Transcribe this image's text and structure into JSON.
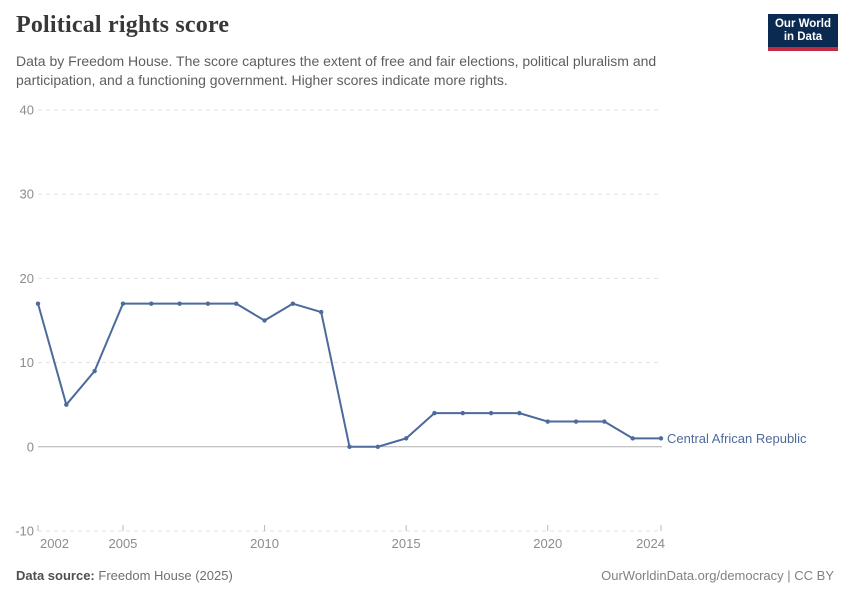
{
  "header": {
    "title": "Political rights score",
    "subtitle_lines": [
      "Data by Freedom House. The score captures the extent of free and fair elections, political pluralism and",
      "participation, and a functioning government. Higher scores indicate more rights."
    ],
    "logo_lines": [
      "Our World",
      "in Data"
    ],
    "logo_colors": {
      "background": "#0a2a52",
      "accent": "#c32b43"
    }
  },
  "chart_data": {
    "type": "line",
    "title": "Political rights score",
    "xlabel": "",
    "ylabel": "",
    "xlim": [
      2002,
      2024
    ],
    "ylim": [
      -10,
      40
    ],
    "x_ticks": [
      2002,
      2005,
      2010,
      2015,
      2020,
      2024
    ],
    "y_ticks": [
      40,
      30,
      20,
      10,
      0,
      -10
    ],
    "grid": "horizontal dashed, zero line solid",
    "legend": "label at end of line",
    "colors": {
      "grid": "#e2e2e2",
      "zero_line": "#b0b0b0",
      "axis_tick": "#b9b9b9",
      "tick_text": "#8c8c8c"
    },
    "series": [
      {
        "name": "Central African Republic",
        "color": "#4c6a9c",
        "x": [
          2002,
          2003,
          2004,
          2005,
          2006,
          2007,
          2008,
          2009,
          2010,
          2011,
          2012,
          2013,
          2014,
          2015,
          2016,
          2017,
          2018,
          2019,
          2020,
          2021,
          2022,
          2023,
          2024
        ],
        "values": [
          17,
          5,
          9,
          17,
          17,
          17,
          17,
          17,
          15,
          17,
          16,
          0,
          0,
          1,
          4,
          4,
          4,
          4,
          3,
          3,
          3,
          1,
          1
        ]
      }
    ]
  },
  "footer": {
    "source_label": "Data source:",
    "source_value": "Freedom House (2025)",
    "attribution": "OurWorldinData.org/democracy | CC BY"
  }
}
